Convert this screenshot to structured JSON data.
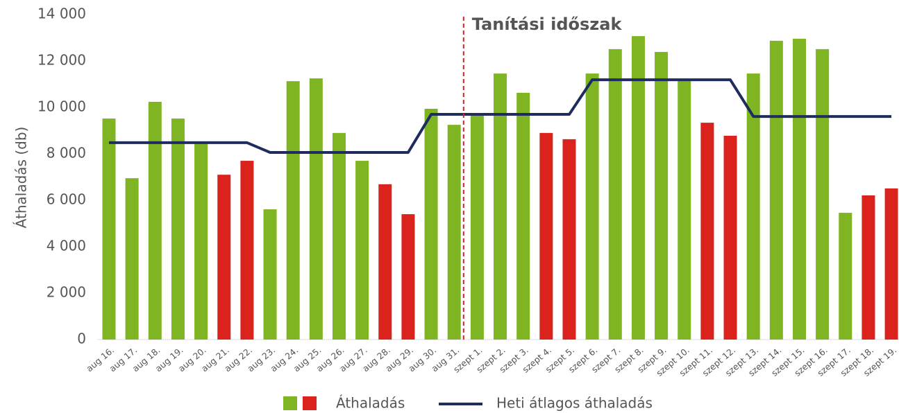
{
  "chart_data": {
    "type": "bar",
    "y_label": "Áthaladás (db)",
    "annotation": "Tanítási időszak",
    "categories": [
      "aug 16.",
      "aug 17.",
      "aug 18.",
      "aug 19.",
      "aug 20.",
      "aug 21.",
      "aug 22.",
      "aug 23.",
      "aug 24.",
      "aug 25.",
      "aug 26.",
      "aug 27.",
      "aug 28.",
      "aug 29.",
      "aug 30.",
      "aug 31.",
      "szept 1.",
      "szept 2.",
      "szept 3.",
      "szept 4.",
      "szept 5.",
      "szept 6.",
      "szept 7.",
      "szept 8.",
      "szept 9.",
      "szept 10.",
      "szept 11.",
      "szept 12.",
      "szept 13.",
      "szept 14.",
      "szept 15.",
      "szept 16.",
      "szept 17.",
      "szept 18.",
      "szept 19."
    ],
    "series": [
      {
        "name": "Áthaladás",
        "type": "bar",
        "colors": [
          "#7fb423",
          "#7fb423",
          "#7fb423",
          "#7fb423",
          "#7fb423",
          "#d9231c",
          "#d9231c",
          "#7fb423",
          "#7fb423",
          "#7fb423",
          "#7fb423",
          "#7fb423",
          "#d9231c",
          "#d9231c",
          "#7fb423",
          "#7fb423",
          "#7fb423",
          "#7fb423",
          "#7fb423",
          "#d9231c",
          "#d9231c",
          "#7fb423",
          "#7fb423",
          "#7fb423",
          "#7fb423",
          "#7fb423",
          "#d9231c",
          "#d9231c",
          "#7fb423",
          "#7fb423",
          "#7fb423",
          "#7fb423",
          "#7fb423",
          "#d9231c",
          "#d9231c"
        ],
        "values": [
          9520,
          6950,
          10240,
          9520,
          8500,
          7100,
          7700,
          5610,
          11130,
          11250,
          8900,
          7700,
          6690,
          5400,
          9940,
          9250,
          9700,
          11460,
          10630,
          8900,
          8630,
          11460,
          12510,
          13070,
          12390,
          11190,
          9340,
          8780,
          11460,
          12870,
          12960,
          12510,
          5460,
          6210,
          6510
        ]
      },
      {
        "name": "Heti átlagos áthaladás",
        "type": "line",
        "color": "#1f2d5c",
        "values": [
          8480,
          8480,
          8480,
          8480,
          8480,
          8480,
          8480,
          8060,
          8060,
          8060,
          8060,
          8060,
          8060,
          8060,
          9700,
          9700,
          9700,
          9700,
          9700,
          9700,
          9700,
          11190,
          11190,
          11190,
          11190,
          11190,
          11190,
          11190,
          9610,
          9610,
          9610,
          9610,
          9610,
          9610,
          9610
        ]
      }
    ],
    "ylim": [
      0,
      14000
    ],
    "yticks": [
      0,
      {
        "value": 2000,
        "label": "2 000"
      },
      {
        "value": 4000,
        "label": "4 000"
      },
      {
        "value": 6000,
        "label": "6 000"
      },
      {
        "value": 8000,
        "label": "8 000"
      },
      {
        "value": 10000,
        "label": "10 000"
      },
      {
        "value": 12000,
        "label": "12 000"
      },
      {
        "value": 14000,
        "label": "14 000"
      }
    ],
    "annotation_color": "#d9231c"
  }
}
